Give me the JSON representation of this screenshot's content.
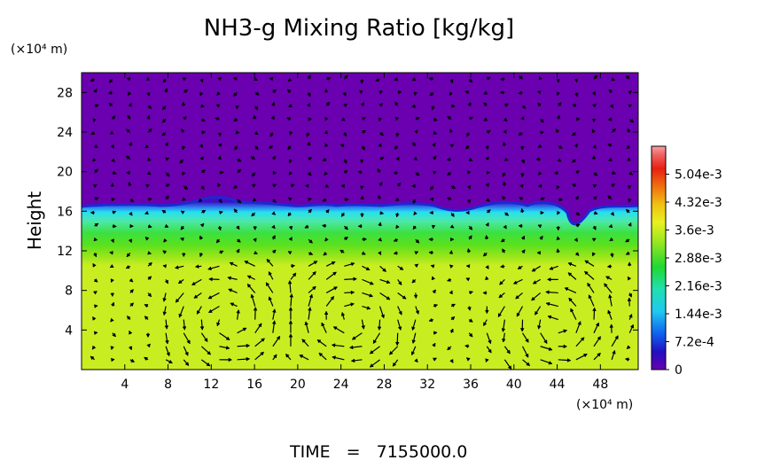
{
  "chart_data": {
    "type": "heatmap",
    "title": "NH3-g Mixing Ratio [kg/kg]",
    "ylabel": "Height",
    "y_unit": "(×10⁴ m)",
    "x_unit": "(×10⁴ m)",
    "xlim": [
      0,
      51.5
    ],
    "ylim": [
      0,
      30
    ],
    "x_ticks": [
      4,
      8,
      12,
      16,
      20,
      24,
      28,
      32,
      36,
      40,
      44,
      48
    ],
    "y_ticks": [
      4,
      8,
      12,
      16,
      20,
      24,
      28
    ],
    "colorbar": {
      "range": [
        0,
        0.00576
      ],
      "tick_values": [
        0,
        0.00072,
        0.00144,
        0.00216,
        0.00288,
        0.0036,
        0.00432,
        0.00504
      ],
      "tick_labels": [
        "0",
        "7.2e-4",
        "1.44e-3",
        "2.16e-3",
        "2.88e-3",
        "3.6e-3",
        "4.32e-3",
        "5.04e-3"
      ]
    },
    "field_profile": [
      {
        "height": 0,
        "value": 0.0037
      },
      {
        "height": 6,
        "value": 0.0037
      },
      {
        "height": 10,
        "value": 0.0034
      },
      {
        "height": 12,
        "value": 0.0033
      },
      {
        "height": 13,
        "value": 0.0029
      },
      {
        "height": 14.5,
        "value": 0.0026
      },
      {
        "height": 15.5,
        "value": 0.0021
      },
      {
        "height": 16.3,
        "value": 0.0016
      },
      {
        "height": 16.8,
        "value": 0.0006
      },
      {
        "height": 17.2,
        "value": 0
      },
      {
        "height": 30,
        "value": 0
      }
    ],
    "wind_vectors": "arrows plotted over the field, with overturning circulation cells below ~10 units height",
    "grid": false
  },
  "footer": {
    "time_label": "TIME",
    "time_equals": "=",
    "time_value": "7155000.0"
  }
}
